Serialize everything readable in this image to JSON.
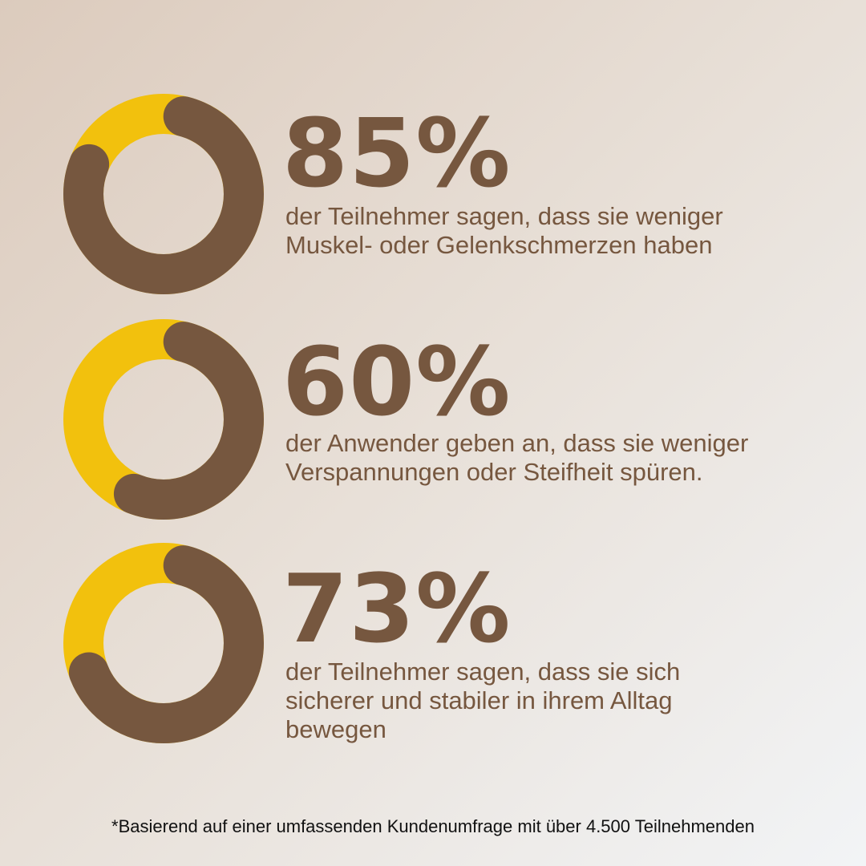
{
  "colors": {
    "brown": "#76573f",
    "yellow": "#f2c10d",
    "footnote": "#111111"
  },
  "chart_data": [
    {
      "type": "donut",
      "value": 85,
      "unit": "%",
      "label": "85%",
      "description": "der Teilnehmer sagen, dass sie weniger Muskel- oder Gelenkschmerzen haben",
      "description_lines": [
        "der Teilnehmer sagen, dass sie weniger",
        "Muskel- oder Gelenkschmerzen haben"
      ]
    },
    {
      "type": "donut",
      "value": 60,
      "unit": "%",
      "label": "60%",
      "description": "der Anwender geben an, dass sie weniger Verspannungen oder Steifheit spüren.",
      "description_lines": [
        "der Anwender geben an, dass sie weniger",
        "Verspannungen oder Steifheit spüren."
      ]
    },
    {
      "type": "donut",
      "value": 73,
      "unit": "%",
      "label": "73%",
      "description": "der Teilnehmer sagen, dass sie sich sicherer und stabiler in ihrem Alltag bewegen",
      "description_lines": [
        "der Teilnehmer sagen, dass sie sich",
        "sicherer und stabiler in ihrem Alltag",
        "bewegen"
      ]
    }
  ],
  "footnote": "*Basierend auf einer umfassenden Kundenumfrage mit über 4.500 Teilnehmenden"
}
